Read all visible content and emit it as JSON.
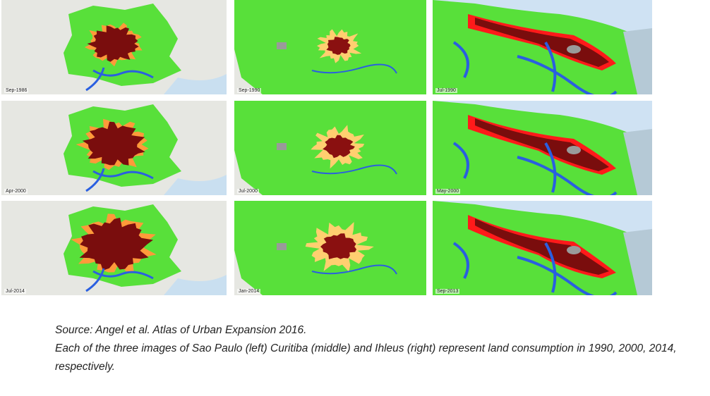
{
  "panels": [
    {
      "label": "Sep-1986"
    },
    {
      "label": "Sep-1990"
    },
    {
      "label": "Jul-1990"
    },
    {
      "label": "Apr-2000"
    },
    {
      "label": "Jul-2000"
    },
    {
      "label": "May-2000"
    },
    {
      "label": "Jul-2014"
    },
    {
      "label": "Jan-2014"
    },
    {
      "label": "Sep-2013"
    }
  ],
  "caption": {
    "source": "Source: Angel et al. Atlas of Urban Expansion 2016.",
    "description": "Each of the three images of Sao Paulo (left) Curitiba (middle) and Ihleus (right) represent land consumption in 1990, 2000, 2014, respectively."
  }
}
